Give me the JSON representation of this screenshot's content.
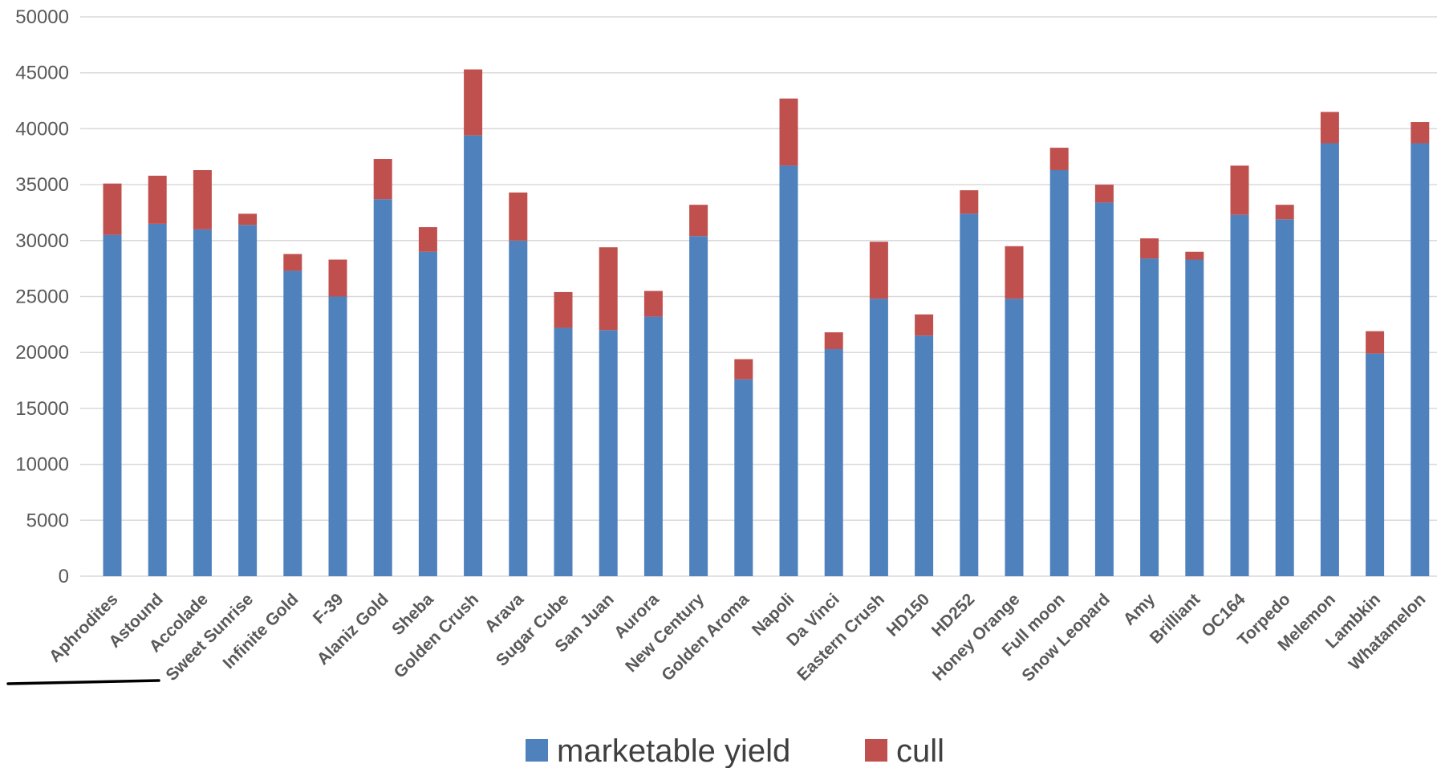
{
  "chart_data": {
    "type": "bar",
    "stacked": true,
    "title": "",
    "xlabel": "",
    "ylabel": "",
    "ylim": [
      0,
      50000
    ],
    "yticks": [
      0,
      5000,
      10000,
      15000,
      20000,
      25000,
      30000,
      35000,
      40000,
      45000,
      50000
    ],
    "grid": true,
    "legend_position": "bottom",
    "categories": [
      "Aphrodites",
      "Astound",
      "Accolade",
      "Sweet Sunrise",
      "Infinite Gold",
      "F-39",
      "Alaniz Gold",
      "Sheba",
      "Golden Crush",
      "Arava",
      "Sugar Cube",
      "San Juan",
      "Aurora",
      "New Century",
      "Golden Aroma",
      "Napoli",
      "Da Vinci",
      "Eastern Crush",
      "HD150",
      "HD252",
      "Honey Orange",
      "Full moon",
      "Snow Leopard",
      "Amy",
      "Brilliant",
      "OC164",
      "Torpedo",
      "Melemon",
      "Lambkin",
      "Whatamelon"
    ],
    "series": [
      {
        "name": "marketable yield",
        "color": "#4f81bd",
        "values": [
          30500,
          31500,
          31000,
          31400,
          27300,
          25000,
          33700,
          29000,
          39400,
          30000,
          22200,
          22000,
          23200,
          30400,
          17600,
          36700,
          20300,
          24800,
          21500,
          32400,
          24800,
          36300,
          33400,
          28400,
          28300,
          32300,
          31900,
          38700,
          19900,
          38700
        ]
      },
      {
        "name": "cull",
        "color": "#c0504d",
        "values": [
          4600,
          4300,
          5300,
          1000,
          1500,
          3300,
          3600,
          2200,
          5900,
          4300,
          3200,
          7400,
          2300,
          2800,
          1800,
          6000,
          1500,
          5100,
          1900,
          2100,
          4700,
          2000,
          1600,
          1800,
          700,
          4400,
          1300,
          2800,
          2000,
          1900
        ]
      }
    ]
  }
}
